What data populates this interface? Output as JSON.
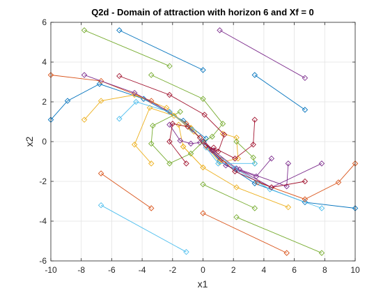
{
  "chart_data": {
    "type": "line",
    "title": "Q2d - Domain of attraction with horizon 6 and Xf = 0",
    "xlabel": "x1",
    "ylabel": "x2",
    "xlim": [
      -10,
      10
    ],
    "ylim": [
      -6,
      6
    ],
    "xticks": [
      -10,
      -8,
      -6,
      -4,
      -2,
      0,
      2,
      4,
      6,
      8,
      10
    ],
    "yticks": [
      -6,
      -4,
      -2,
      0,
      2,
      4,
      6
    ],
    "grid": true,
    "box": true,
    "marker": "diamond",
    "colors": [
      "#0072BD",
      "#D95319",
      "#EDB120",
      "#7E2F8E",
      "#77AC30",
      "#4DBEEE",
      "#A2142F"
    ],
    "series": [
      {
        "color": "#0072BD",
        "points": [
          [
            -5.5,
            5.6
          ],
          [
            0,
            3.6
          ]
        ]
      },
      {
        "color": "#0072BD",
        "points": [
          [
            3.4,
            3.35
          ],
          [
            6.7,
            1.6
          ]
        ]
      },
      {
        "color": "#0072BD",
        "points": [
          [
            -10,
            1.1
          ],
          [
            -8.9,
            2.05
          ],
          [
            -6.8,
            2.9
          ],
          [
            -3.9,
            2.15
          ],
          [
            -1.3,
            1.05
          ],
          [
            0.2,
            0.15
          ]
        ]
      },
      {
        "color": "#0072BD",
        "points": [
          [
            10,
            -3.35
          ],
          [
            6.7,
            -3.05
          ],
          [
            3.4,
            -2.1
          ],
          [
            1.1,
            -0.95
          ],
          [
            0.05,
            -0.05
          ]
        ]
      },
      {
        "color": "#D95319",
        "points": [
          [
            -10,
            3.35
          ],
          [
            -6.7,
            3.05
          ],
          [
            -3.4,
            2.05
          ],
          [
            -1.1,
            0.9
          ],
          [
            0,
            0
          ]
        ]
      },
      {
        "color": "#D95319",
        "points": [
          [
            10,
            -1.1
          ],
          [
            8.9,
            -2.05
          ],
          [
            6.7,
            -2.9
          ],
          [
            3.6,
            -2.05
          ],
          [
            1.2,
            -0.9
          ],
          [
            0,
            0
          ]
        ]
      },
      {
        "color": "#D95319",
        "points": [
          [
            -6.7,
            -1.6
          ],
          [
            -3.4,
            -3.35
          ]
        ]
      },
      {
        "color": "#D95319",
        "points": [
          [
            0,
            -3.6
          ],
          [
            5.5,
            -5.6
          ]
        ]
      },
      {
        "color": "#EDB120",
        "points": [
          [
            -7.8,
            1.1
          ],
          [
            -6.7,
            2.05
          ],
          [
            -4.5,
            2.35
          ],
          [
            -2.4,
            1.7
          ],
          [
            -0.8,
            0.65
          ],
          [
            0,
            0
          ]
        ]
      },
      {
        "color": "#EDB120",
        "points": [
          [
            -3.4,
            -1.1
          ],
          [
            -4.5,
            -0.15
          ],
          [
            -3.5,
            1.7
          ],
          [
            -1.9,
            1.3
          ],
          [
            -0.6,
            0.5
          ]
        ]
      },
      {
        "color": "#EDB120",
        "points": [
          [
            0,
            -1.3
          ],
          [
            -1.3,
            -0.25
          ],
          [
            -1.6,
            0.85
          ],
          [
            -0.8,
            0.7
          ],
          [
            -0.2,
            0.2
          ]
        ]
      },
      {
        "color": "#EDB120",
        "points": [
          [
            5.6,
            -3.3
          ],
          [
            2.2,
            -2.3
          ],
          [
            0,
            -1.3
          ],
          [
            -1.3,
            -0.25
          ]
        ]
      },
      {
        "color": "#EDB120",
        "points": [
          [
            1.3,
            0.4
          ],
          [
            2.2,
            0.2
          ],
          [
            2.3,
            -0.85
          ],
          [
            1.1,
            -1.05
          ],
          [
            0.3,
            -0.3
          ]
        ]
      },
      {
        "color": "#7E2F8E",
        "points": [
          [
            1.1,
            5.6
          ],
          [
            6.7,
            3.2
          ]
        ]
      },
      {
        "color": "#7E2F8E",
        "points": [
          [
            -7.8,
            3.35
          ],
          [
            -4.5,
            2.45
          ],
          [
            -2.2,
            1.5
          ],
          [
            -0.7,
            0.6
          ],
          [
            0,
            0
          ]
        ]
      },
      {
        "color": "#7E2F8E",
        "points": [
          [
            -2.2,
            0.85
          ],
          [
            -1.5,
            0.05
          ],
          [
            -0.8,
            -0.1
          ],
          [
            -0.2,
            -0.05
          ]
        ]
      },
      {
        "color": "#7E2F8E",
        "points": [
          [
            7.8,
            -1.1
          ],
          [
            4.5,
            -2.3
          ],
          [
            2.2,
            -1.35
          ],
          [
            0.7,
            -0.45
          ],
          [
            0,
            0
          ]
        ]
      },
      {
        "color": "#7E2F8E",
        "points": [
          [
            4.5,
            -0.85
          ],
          [
            3.5,
            -1.75
          ],
          [
            1.5,
            -1.2
          ],
          [
            0.4,
            -0.35
          ]
        ]
      },
      {
        "color": "#7E2F8E",
        "points": [
          [
            5.6,
            -1.1
          ],
          [
            5.5,
            -2.25
          ],
          [
            2.4,
            -1.4
          ]
        ]
      },
      {
        "color": "#77AC30",
        "points": [
          [
            -7.8,
            5.6
          ],
          [
            -2.2,
            3.8
          ]
        ]
      },
      {
        "color": "#77AC30",
        "points": [
          [
            -3.4,
            3.35
          ],
          [
            0,
            2.15
          ],
          [
            1.3,
            0.9
          ],
          [
            0.6,
            0.25
          ],
          [
            0,
            0
          ]
        ]
      },
      {
        "color": "#77AC30",
        "points": [
          [
            -1.5,
            1.5
          ],
          [
            -3.3,
            0.8
          ],
          [
            -3.4,
            -0.1
          ],
          [
            -2.2,
            -1.1
          ],
          [
            -0.8,
            -0.6
          ],
          [
            0,
            0
          ]
        ]
      },
      {
        "color": "#77AC30",
        "points": [
          [
            0,
            -2.15
          ],
          [
            3.4,
            -3.35
          ]
        ]
      },
      {
        "color": "#77AC30",
        "points": [
          [
            2.2,
            -3.8
          ],
          [
            7.8,
            -5.6
          ]
        ]
      },
      {
        "color": "#77AC30",
        "points": [
          [
            3.4,
            -1.1
          ],
          [
            3.3,
            -0.8
          ],
          [
            2.2,
            0
          ]
        ]
      },
      {
        "color": "#4DBEEE",
        "points": [
          [
            -5.5,
            1.15
          ],
          [
            -4.4,
            2.0
          ],
          [
            -2.2,
            1.5
          ],
          [
            -0.7,
            0.6
          ],
          [
            0,
            0
          ]
        ]
      },
      {
        "color": "#4DBEEE",
        "points": [
          [
            7.8,
            -3.35
          ],
          [
            4.4,
            -2.4
          ],
          [
            2.1,
            -1.35
          ],
          [
            0.6,
            -0.45
          ],
          [
            0,
            0
          ]
        ]
      },
      {
        "color": "#4DBEEE",
        "points": [
          [
            -6.7,
            -3.2
          ],
          [
            -1.1,
            -5.55
          ]
        ]
      },
      {
        "color": "#4DBEEE",
        "points": [
          [
            3.4,
            -1.1
          ],
          [
            1.0,
            -1.1
          ],
          [
            0.2,
            -0.3
          ]
        ]
      },
      {
        "color": "#A2142F",
        "points": [
          [
            -5.5,
            3.3
          ],
          [
            -2.2,
            2.35
          ],
          [
            0.1,
            1.35
          ],
          [
            1.4,
            0.35
          ],
          [
            1.0,
            -0.5
          ],
          [
            0.2,
            -0.2
          ]
        ]
      },
      {
        "color": "#A2142F",
        "points": [
          [
            -1.1,
            -1.1
          ],
          [
            -2.2,
            0
          ],
          [
            -2.0,
            0.9
          ],
          [
            -1.0,
            0.75
          ],
          [
            -0.2,
            0.2
          ]
        ]
      },
      {
        "color": "#A2142F",
        "points": [
          [
            6.7,
            -2.0
          ],
          [
            4.5,
            -2.3
          ],
          [
            2.1,
            -1.5
          ],
          [
            0.6,
            -0.45
          ],
          [
            0,
            0
          ]
        ]
      },
      {
        "color": "#A2142F",
        "points": [
          [
            3.4,
            1.1
          ],
          [
            3.3,
            -0.15
          ],
          [
            2.1,
            -0.85
          ],
          [
            0.7,
            -0.3
          ]
        ]
      }
    ]
  }
}
